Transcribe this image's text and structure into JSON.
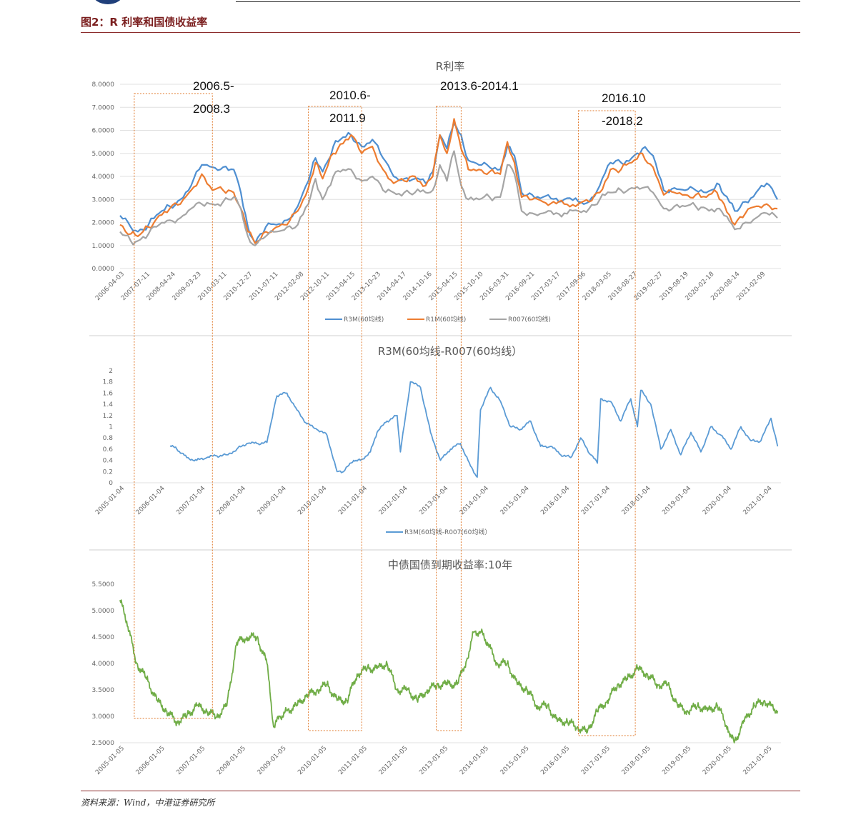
{
  "figure_title": "图2：R 利率和国债收益率",
  "source": "资料来源：Wind，中港证券研究所",
  "annotations": [
    {
      "label_line1": "2006.5-",
      "label_line2": "2008.3",
      "start": "2006-05",
      "end": "2008-03"
    },
    {
      "label_line1": "2010.6-",
      "label_line2": "2011.9",
      "start": "2010-06",
      "end": "2011-09"
    },
    {
      "label_line1": "2013.6-2014.1",
      "label_line2": "",
      "start": "2013-06",
      "end": "2014-01"
    },
    {
      "label_line1": "2016.10",
      "label_line2": "-2018.2",
      "start": "2016-10",
      "end": "2018-02"
    }
  ],
  "chart_data": [
    {
      "type": "line",
      "title": "R利率",
      "ylim": [
        0,
        8
      ],
      "yticks": [
        "0.0000",
        "1.0000",
        "2.0000",
        "3.0000",
        "4.0000",
        "5.0000",
        "6.0000",
        "7.0000",
        "8.0000"
      ],
      "grid": true,
      "legend_position": "bottom",
      "xticks": [
        "2006-04-03",
        "2007-07-11",
        "2008-04-24",
        "2009-03-23",
        "2010-03-11",
        "2010-12-27",
        "2011-07-11",
        "2012-02-08",
        "2012-10-11",
        "2013-04-15",
        "2013-10-23",
        "2014-04-17",
        "2014-10-16",
        "2015-04-15",
        "2015-10-10",
        "2016-03-31",
        "2016-09-21",
        "2017-03-17",
        "2017-09-06",
        "2018-03-05",
        "2018-08-27",
        "2019-02-27",
        "2019-08-19",
        "2020-02-18",
        "2020-08-14",
        "2021-02-09"
      ],
      "series": [
        {
          "name": "R3M(60均线)",
          "color": "#4f8fd1",
          "x": [
            "2006-01",
            "2006-04",
            "2006-06",
            "2006-09",
            "2006-12",
            "2007-03",
            "2007-06",
            "2007-09",
            "2007-12",
            "2008-03",
            "2008-06",
            "2008-09",
            "2008-11",
            "2009-01",
            "2009-03",
            "2009-06",
            "2009-09",
            "2009-12",
            "2010-03",
            "2010-06",
            "2010-08",
            "2010-10",
            "2011-01",
            "2011-03",
            "2011-06",
            "2011-09",
            "2011-12",
            "2012-03",
            "2012-06",
            "2012-09",
            "2012-12",
            "2013-03",
            "2013-05",
            "2013-07",
            "2013-09",
            "2013-11",
            "2014-01",
            "2014-03",
            "2014-06",
            "2014-09",
            "2014-12",
            "2015-02",
            "2015-04",
            "2015-06",
            "2015-09",
            "2015-12",
            "2016-06",
            "2016-10",
            "2017-01",
            "2017-04",
            "2017-07",
            "2017-10",
            "2018-01",
            "2018-04",
            "2018-07",
            "2018-10",
            "2019-01",
            "2019-04",
            "2019-07",
            "2019-10",
            "2020-01",
            "2020-03",
            "2020-06",
            "2020-09",
            "2020-12",
            "2021-03",
            "2021-06"
          ],
          "values": [
            2.3,
            1.8,
            1.6,
            1.9,
            2.4,
            2.7,
            3.0,
            3.6,
            4.5,
            4.4,
            4.4,
            4.3,
            3.3,
            1.8,
            1.1,
            1.8,
            1.9,
            2.1,
            2.7,
            3.8,
            4.8,
            4.2,
            5.3,
            5.6,
            5.8,
            5.3,
            5.6,
            4.8,
            4.0,
            3.9,
            3.9,
            3.7,
            4.2,
            5.8,
            5.2,
            6.3,
            5.8,
            4.7,
            4.5,
            4.4,
            4.3,
            5.3,
            4.9,
            3.3,
            3.2,
            3.1,
            3.0,
            2.9,
            2.9,
            3.6,
            4.6,
            4.6,
            4.8,
            5.2,
            4.9,
            3.4,
            3.5,
            3.4,
            3.4,
            3.3,
            3.7,
            3.2,
            2.5,
            2.9,
            3.3,
            3.7,
            3.0
          ]
        },
        {
          "name": "R1M(60均线)",
          "color": "#ed7d31",
          "x": [
            "2006-01",
            "2006-04",
            "2006-06",
            "2006-09",
            "2006-12",
            "2007-03",
            "2007-06",
            "2007-09",
            "2007-12",
            "2008-03",
            "2008-06",
            "2008-09",
            "2008-11",
            "2009-01",
            "2009-03",
            "2009-06",
            "2009-09",
            "2009-12",
            "2010-03",
            "2010-06",
            "2010-08",
            "2010-10",
            "2011-01",
            "2011-03",
            "2011-06",
            "2011-09",
            "2011-12",
            "2012-03",
            "2012-06",
            "2012-09",
            "2012-12",
            "2013-03",
            "2013-05",
            "2013-07",
            "2013-09",
            "2013-11",
            "2014-01",
            "2014-03",
            "2014-06",
            "2014-09",
            "2014-12",
            "2015-02",
            "2015-04",
            "2015-06",
            "2015-09",
            "2015-12",
            "2016-06",
            "2016-10",
            "2017-01",
            "2017-04",
            "2017-07",
            "2017-10",
            "2018-01",
            "2018-04",
            "2018-07",
            "2018-10",
            "2019-01",
            "2019-04",
            "2019-07",
            "2019-10",
            "2020-01",
            "2020-03",
            "2020-06",
            "2020-09",
            "2020-12",
            "2021-03",
            "2021-06"
          ],
          "values": [
            1.9,
            1.5,
            1.4,
            1.8,
            2.3,
            2.6,
            2.8,
            3.4,
            4.1,
            3.4,
            3.4,
            3.3,
            2.6,
            1.6,
            1.1,
            1.6,
            1.8,
            1.9,
            2.5,
            3.5,
            4.6,
            3.9,
            5.0,
            5.4,
            5.8,
            5.0,
            5.3,
            4.3,
            3.7,
            3.8,
            4.0,
            3.6,
            4.0,
            5.8,
            5.0,
            6.5,
            5.2,
            4.3,
            4.3,
            4.2,
            4.1,
            5.5,
            4.6,
            3.1,
            3.0,
            2.9,
            2.8,
            2.8,
            2.9,
            3.3,
            4.3,
            4.3,
            4.6,
            5.0,
            4.4,
            3.2,
            3.3,
            3.2,
            3.2,
            3.1,
            3.3,
            2.8,
            1.9,
            2.4,
            2.7,
            2.8,
            2.6
          ]
        },
        {
          "name": "R007(60均线)",
          "color": "#a5a5a5",
          "x": [
            "2006-01",
            "2006-04",
            "2006-06",
            "2006-09",
            "2006-12",
            "2007-03",
            "2007-06",
            "2007-09",
            "2007-12",
            "2008-03",
            "2008-06",
            "2008-09",
            "2008-11",
            "2009-01",
            "2009-03",
            "2009-06",
            "2009-09",
            "2009-12",
            "2010-03",
            "2010-06",
            "2010-08",
            "2010-10",
            "2011-01",
            "2011-03",
            "2011-06",
            "2011-09",
            "2011-12",
            "2012-03",
            "2012-06",
            "2012-09",
            "2012-12",
            "2013-03",
            "2013-05",
            "2013-07",
            "2013-09",
            "2013-11",
            "2014-01",
            "2014-03",
            "2014-06",
            "2014-09",
            "2014-12",
            "2015-02",
            "2015-04",
            "2015-06",
            "2015-09",
            "2015-12",
            "2016-06",
            "2016-10",
            "2017-01",
            "2017-04",
            "2017-07",
            "2017-10",
            "2018-01",
            "2018-04",
            "2018-07",
            "2018-10",
            "2019-01",
            "2019-04",
            "2019-07",
            "2019-10",
            "2020-01",
            "2020-03",
            "2020-06",
            "2020-09",
            "2020-12",
            "2021-03",
            "2021-06"
          ],
          "values": [
            1.6,
            1.2,
            1.2,
            1.5,
            1.9,
            2.1,
            2.2,
            2.6,
            2.8,
            2.8,
            2.9,
            3.1,
            2.6,
            1.4,
            1.0,
            1.4,
            1.6,
            1.8,
            1.9,
            2.8,
            3.9,
            3.0,
            4.0,
            4.2,
            4.3,
            3.8,
            4.0,
            3.4,
            3.3,
            3.3,
            3.3,
            3.3,
            3.4,
            4.5,
            3.8,
            5.1,
            3.6,
            3.0,
            3.0,
            3.1,
            3.1,
            4.5,
            4.1,
            2.5,
            2.4,
            2.4,
            2.4,
            2.5,
            2.6,
            3.0,
            3.3,
            3.4,
            3.5,
            3.5,
            3.3,
            2.6,
            2.7,
            2.7,
            2.7,
            2.6,
            2.6,
            2.3,
            1.7,
            2.0,
            2.2,
            2.4,
            2.2
          ]
        }
      ]
    },
    {
      "type": "line",
      "title": "R3M(60均线-R007(60均线）",
      "ylim": [
        0,
        2
      ],
      "yticks": [
        "0",
        "0.2",
        "0.4",
        "0.6",
        "0.8",
        "1",
        "1.2",
        "1.4",
        "1.6",
        "1.8",
        "2"
      ],
      "grid": false,
      "legend_position": "bottom",
      "xticks": [
        "2005-01-04",
        "2006-01-04",
        "2007-01-04",
        "2008-01-04",
        "2009-01-04",
        "2010-01-04",
        "2011-01-04",
        "2012-01-04",
        "2013-01-04",
        "2014-01-04",
        "2015-01-04",
        "2016-01-04",
        "2017-01-04",
        "2018-01-04",
        "2019-01-04",
        "2020-01-04",
        "2021-01-04"
      ],
      "series": [
        {
          "name": "R3M(60均线-R007(60均线）",
          "color": "#5b9bd5",
          "x": [
            "2006-04",
            "2006-06",
            "2006-09",
            "2006-12",
            "2007-03",
            "2007-06",
            "2007-09",
            "2007-12",
            "2008-03",
            "2008-06",
            "2008-09",
            "2008-11",
            "2008-12",
            "2009-03",
            "2009-06",
            "2009-09",
            "2009-12",
            "2010-03",
            "2010-06",
            "2010-08",
            "2010-11",
            "2011-01",
            "2011-04",
            "2011-06",
            "2011-09",
            "2011-12",
            "2012-01",
            "2012-04",
            "2012-07",
            "2012-10",
            "2013-01",
            "2013-04",
            "2013-07",
            "2013-10",
            "2013-12",
            "2014-01",
            "2014-04",
            "2014-07",
            "2014-10",
            "2015-01",
            "2015-04",
            "2015-07",
            "2015-10",
            "2016-01",
            "2016-04",
            "2016-07",
            "2016-10",
            "2016-12",
            "2017-01",
            "2017-04",
            "2017-07",
            "2017-10",
            "2017-12",
            "2018-01",
            "2018-04",
            "2018-07",
            "2018-10",
            "2019-01",
            "2019-04",
            "2019-07",
            "2019-10",
            "2020-01",
            "2020-04",
            "2020-07",
            "2020-10",
            "2021-01",
            "2021-04",
            "2021-06"
          ],
          "values": [
            0.66,
            0.6,
            0.45,
            0.4,
            0.45,
            0.48,
            0.5,
            0.6,
            0.7,
            0.7,
            0.72,
            1.3,
            1.55,
            1.6,
            1.3,
            1.05,
            0.95,
            0.85,
            0.2,
            0.2,
            0.4,
            0.4,
            0.55,
            0.9,
            1.1,
            1.2,
            0.55,
            1.8,
            1.7,
            0.9,
            0.4,
            0.6,
            0.7,
            0.3,
            0.1,
            1.3,
            1.7,
            1.45,
            1.0,
            0.95,
            1.1,
            0.65,
            0.65,
            0.5,
            0.45,
            0.8,
            0.5,
            0.35,
            1.5,
            1.45,
            1.1,
            1.5,
            1.0,
            1.65,
            1.4,
            0.6,
            0.95,
            0.5,
            0.9,
            0.55,
            1.0,
            0.85,
            0.6,
            1.0,
            0.75,
            0.75,
            1.15,
            0.65
          ]
        }
      ]
    },
    {
      "type": "line",
      "title": "中债国债到期收益率:10年",
      "ylim": [
        2.5,
        5.5
      ],
      "yticks": [
        "2.5000",
        "3.0000",
        "3.5000",
        "4.0000",
        "4.5000",
        "5.0000",
        "5.5000"
      ],
      "grid": false,
      "legend_position": "none",
      "xticks": [
        "2005-01-05",
        "2006-01-05",
        "2007-01-05",
        "2008-01-05",
        "2009-01-05",
        "2010-01-05",
        "2011-01-05",
        "2012-01-05",
        "2013-01-05",
        "2014-01-05",
        "2015-01-05",
        "2016-01-05",
        "2017-01-05",
        "2018-01-05",
        "2019-01-05",
        "2020-01-05",
        "2021-01-05"
      ],
      "series": [
        {
          "name": "",
          "color": "#70ad47",
          "x": [
            "2005-01",
            "2005-03",
            "2005-06",
            "2005-09",
            "2005-12",
            "2006-03",
            "2006-06",
            "2006-09",
            "2006-12",
            "2007-03",
            "2007-06",
            "2007-09",
            "2007-12",
            "2008-03",
            "2008-06",
            "2008-09",
            "2008-11",
            "2009-01",
            "2009-03",
            "2009-06",
            "2009-09",
            "2009-12",
            "2010-03",
            "2010-06",
            "2010-09",
            "2010-12",
            "2011-03",
            "2011-06",
            "2011-09",
            "2011-12",
            "2012-03",
            "2012-06",
            "2012-09",
            "2012-12",
            "2013-03",
            "2013-06",
            "2013-09",
            "2013-11",
            "2014-01",
            "2014-03",
            "2014-06",
            "2014-09",
            "2014-12",
            "2015-03",
            "2015-06",
            "2015-09",
            "2015-12",
            "2016-03",
            "2016-06",
            "2016-09",
            "2016-12",
            "2017-03",
            "2017-06",
            "2017-09",
            "2017-12",
            "2018-03",
            "2018-06",
            "2018-09",
            "2018-12",
            "2019-03",
            "2019-06",
            "2019-09",
            "2019-12",
            "2020-03",
            "2020-05",
            "2020-08",
            "2020-11",
            "2021-02",
            "2021-04",
            "2021-06"
          ],
          "values": [
            5.2,
            4.8,
            4.0,
            3.7,
            3.3,
            3.1,
            2.9,
            3.0,
            3.2,
            3.1,
            3.0,
            3.2,
            4.4,
            4.5,
            4.5,
            4.0,
            2.8,
            3.0,
            3.1,
            3.2,
            3.4,
            3.5,
            3.6,
            3.3,
            3.3,
            3.8,
            3.9,
            3.9,
            4.0,
            3.5,
            3.5,
            3.3,
            3.5,
            3.6,
            3.6,
            3.6,
            4.1,
            4.6,
            4.6,
            4.4,
            4.0,
            4.0,
            3.6,
            3.5,
            3.2,
            3.2,
            2.9,
            2.9,
            2.8,
            2.7,
            3.1,
            3.3,
            3.6,
            3.7,
            3.9,
            3.8,
            3.6,
            3.6,
            3.2,
            3.1,
            3.2,
            3.1,
            3.2,
            2.8,
            2.5,
            2.9,
            3.2,
            3.3,
            3.2,
            3.1
          ]
        }
      ]
    }
  ]
}
